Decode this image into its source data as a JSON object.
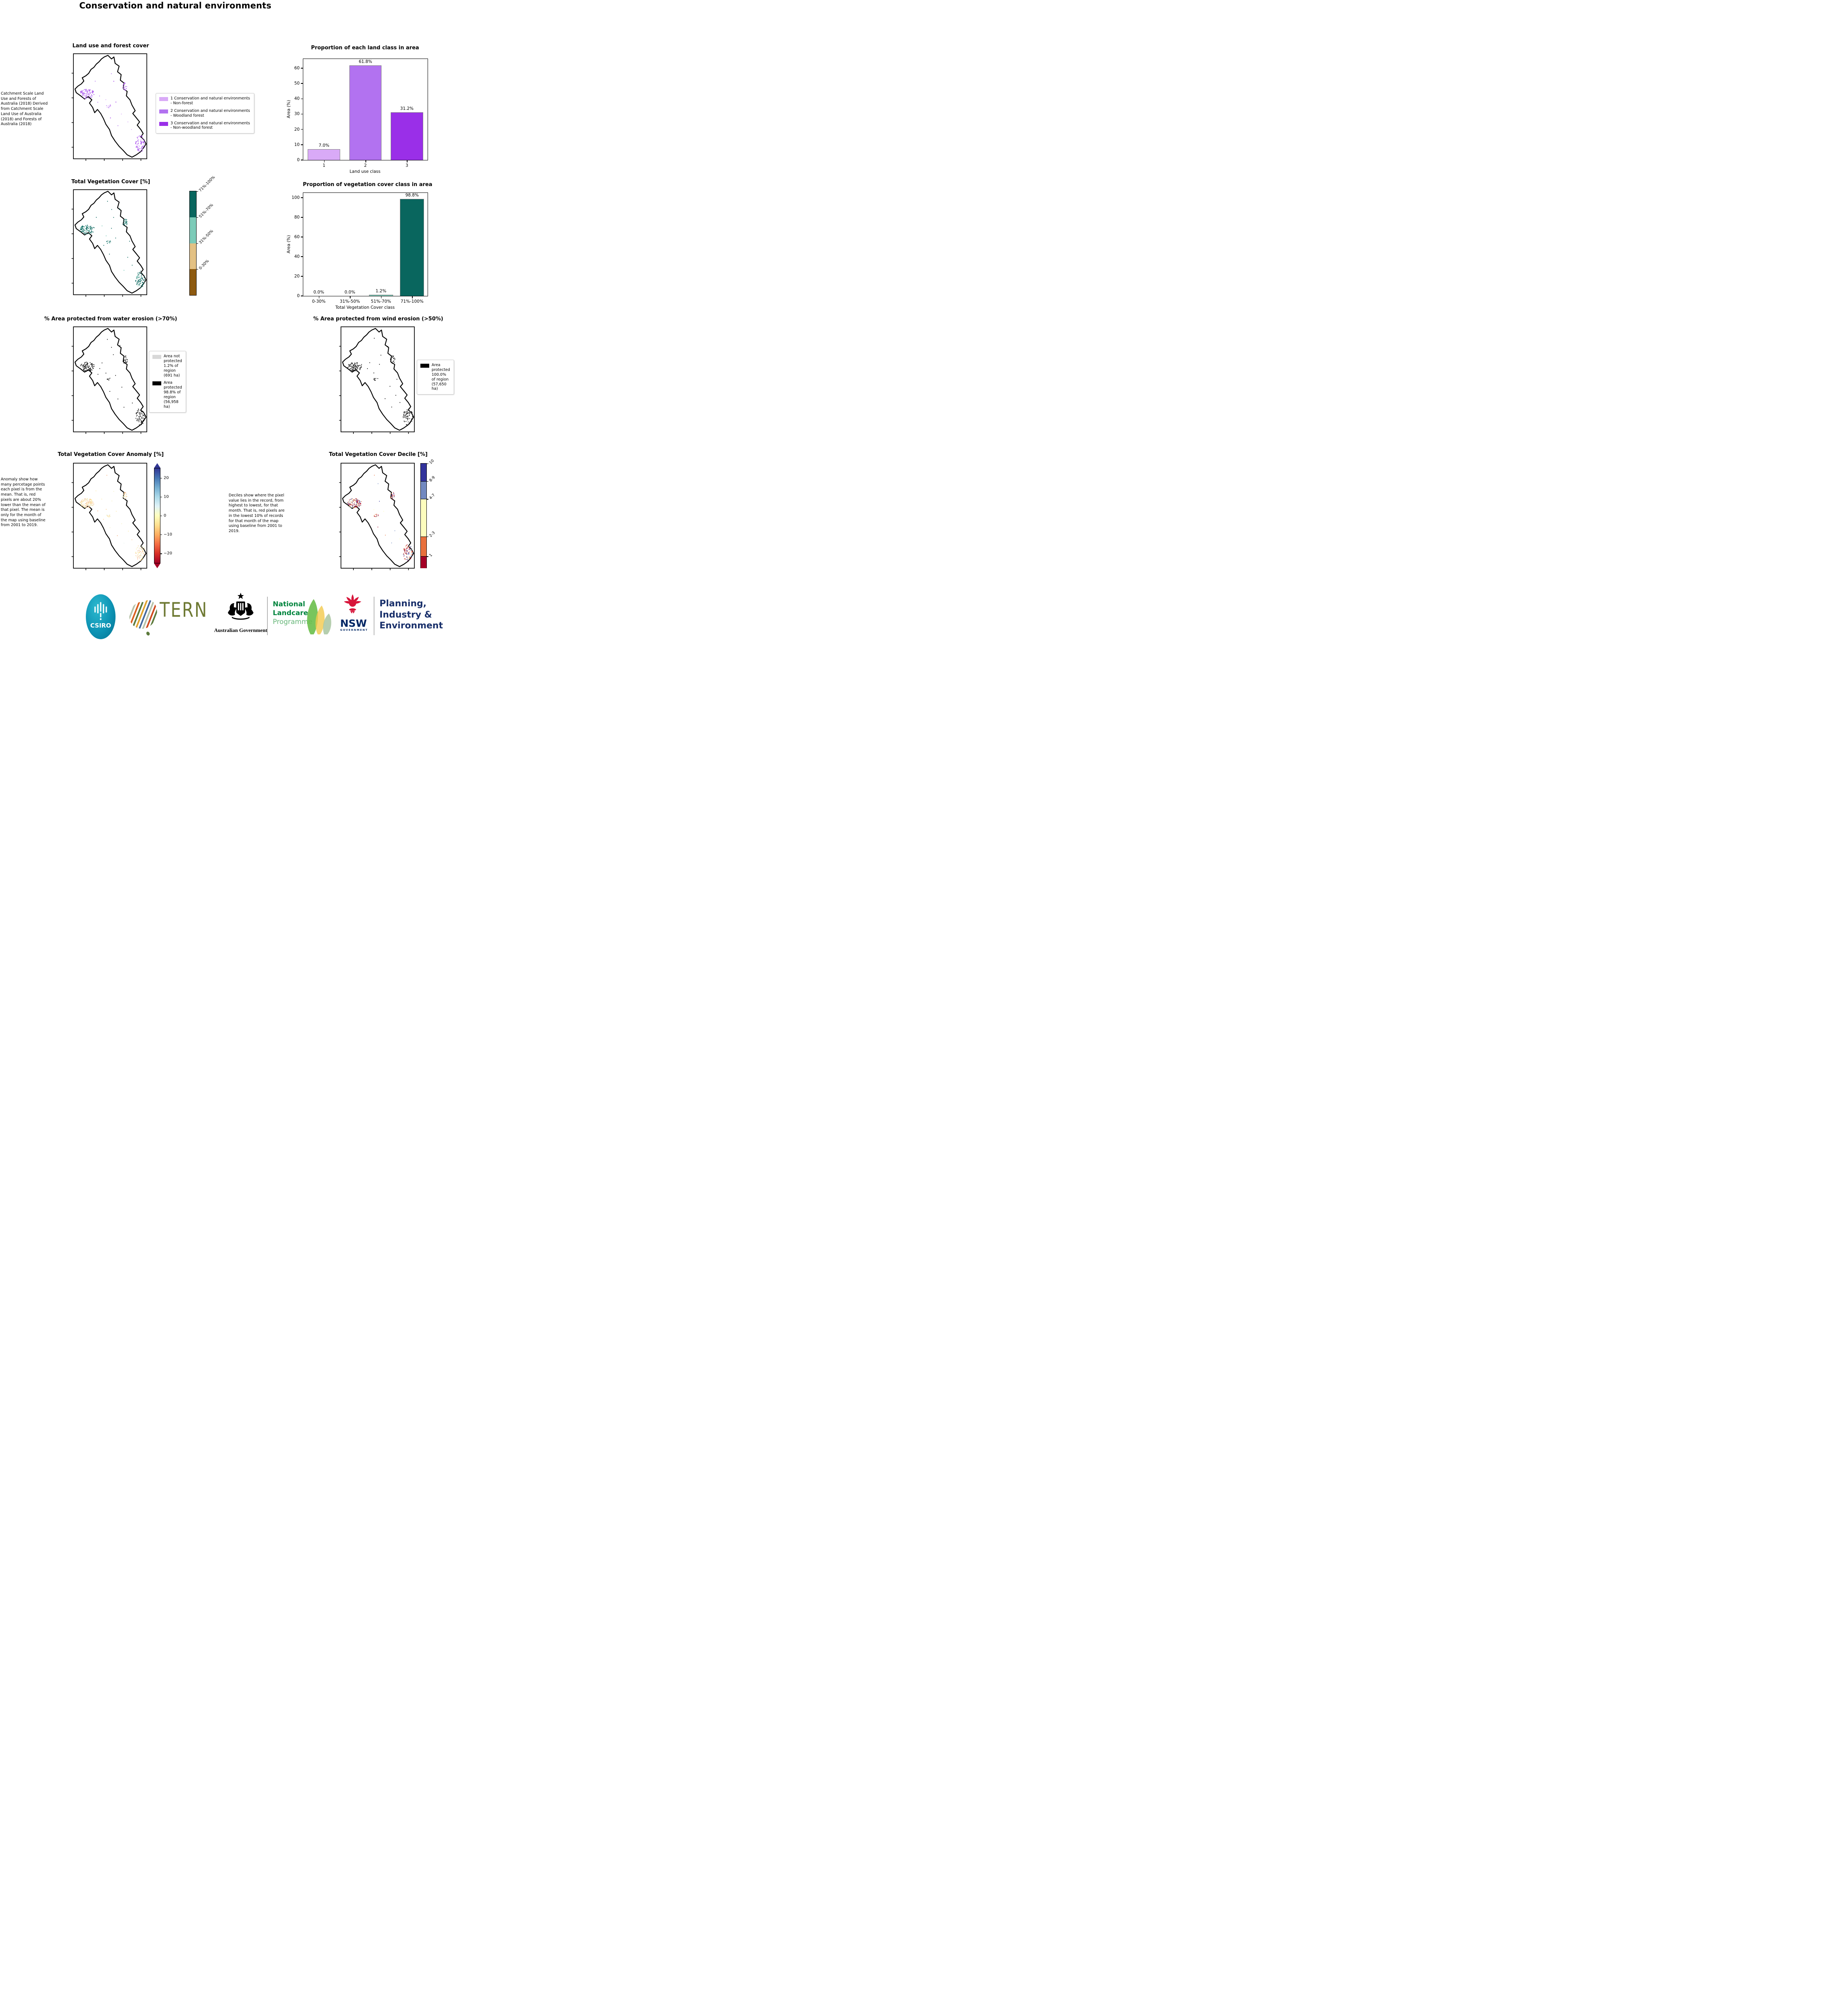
{
  "page_title": "Conservation and natural environments",
  "panels": {
    "land_use": {
      "title": "Land use and forest cover",
      "caption": " Catchment Scale Land Use and Forests of Australia (2018) Derived from Catchment Scale Land Use of Australia (2018) and Forests of Australia (2018)",
      "legend": [
        {
          "label": "1 Conservation and natural environments - Non-forest",
          "color": "#d9aaf7"
        },
        {
          "label": "2 Conservation and natural environments - Woodland forest",
          "color": "#b272f0"
        },
        {
          "label": "3 Conservation and natural environments - Non-woodland forest",
          "color": "#9a2fe8"
        }
      ],
      "map_palette": [
        "#d9aaf7",
        "#b272f0",
        "#9a2fe8"
      ]
    },
    "veg_cover": {
      "title": "Total Vegetation Cover [%]",
      "colorbar": {
        "labels": [
          "71%-100%",
          "51%-70%",
          "31%-50%",
          "0-30%"
        ],
        "colors": [
          "#09665e",
          "#7ccbb8",
          "#e3c184",
          "#8d5a10"
        ]
      },
      "map_palette": [
        "#09665e",
        "#7ccbb8"
      ]
    },
    "water_erosion": {
      "title": "% Area protected from water erosion (>70%)",
      "legend": [
        {
          "label": "Area not protected 1.2% of region (691 ha)",
          "color": "#d8d8d8"
        },
        {
          "label": "Area protected 98.8% of region (56,958 ha)",
          "color": "#000000"
        }
      ],
      "map_palette": [
        "#111111"
      ]
    },
    "wind_erosion": {
      "title": "% Area protected from wind erosion (>50%)",
      "legend": [
        {
          "label": "Area protected 100.0% of region (57,650 ha)",
          "color": "#000000"
        }
      ],
      "map_palette": [
        "#111111"
      ]
    },
    "anomaly": {
      "title": "Total Vegetation Cover Anomaly [%]",
      "caption": "Anomaly show how many percetage points each pixel is from the mean. That is, red pixels are about 20% lower than the mean of that pixel. The mean is only for the month of the map using baseline from 2001 to 2019.",
      "colorbar": {
        "ticks": [
          "20",
          "10",
          "0",
          "−10",
          "−20"
        ],
        "gradient": [
          "#313695",
          "#4575b4",
          "#74add1",
          "#abd9e9",
          "#e0f3f8",
          "#ffffbf",
          "#fee090",
          "#fdae61",
          "#f46d43",
          "#d73027",
          "#a50026"
        ]
      },
      "map_palette": [
        "#f3edba",
        "#fde79a",
        "#f9c27c",
        "#e3f1ee",
        "#f59d62"
      ]
    },
    "decile": {
      "title": "Total Vegetation Cover Decile [%]",
      "caption": "Deciles show where the pixel value lies in the record, from highest to lowest, for that month. That is, red pixels are in the lowest 10% of records for that month of the map using baseline from 2001 to 2019.",
      "colorbar": {
        "labels": [
          "10",
          "8-9",
          "4-7",
          "2-3",
          "1"
        ],
        "colors": [
          "#32339b",
          "#7289c0",
          "#fdfdbe",
          "#e8703c",
          "#a50026"
        ],
        "fractions": [
          0.17,
          0.17,
          0.36,
          0.19,
          0.11
        ]
      },
      "map_palette": [
        "#a50026",
        "#e8703c",
        "#fdfdbe",
        "#7289c0",
        "#32339b"
      ]
    }
  },
  "chart_data": [
    {
      "type": "bar",
      "title": "Proportion of each land class in area",
      "categories": [
        "1",
        "2",
        "3"
      ],
      "values": [
        7.0,
        61.8,
        31.2
      ],
      "bar_labels": [
        "7.0%",
        "61.8%",
        "31.2%"
      ],
      "colors": [
        "#d9aaf7",
        "#b272f0",
        "#9a2fe8"
      ],
      "xlabel": "Land use class",
      "ylabel": "Area (%)",
      "ylim": [
        0,
        66
      ],
      "yticks": [
        0,
        10,
        20,
        30,
        40,
        50,
        60
      ],
      "grid": false,
      "legend_position": "none"
    },
    {
      "type": "bar",
      "title": "Proportion of vegetation cover class in area",
      "categories": [
        "0-30%",
        "31%-50%",
        "51%-70%",
        "71%-100%"
      ],
      "values": [
        0.0,
        0.0,
        1.2,
        98.8
      ],
      "bar_labels": [
        "0.0%",
        "0.0%",
        "1.2%",
        "98.8%"
      ],
      "colors": [
        "#8d5a10",
        "#e3c184",
        "#7ccbb8",
        "#09665e"
      ],
      "xlabel": "Total Vegetation Cover class",
      "ylabel": "Area (%)",
      "ylim": [
        0,
        105
      ],
      "yticks": [
        0,
        20,
        40,
        60,
        80,
        100
      ],
      "grid": false,
      "legend_position": "none"
    }
  ],
  "footer_logos": {
    "csiro": "CSIRO",
    "tern": "TERN",
    "aus_gov": "Australian Government",
    "landcare_lines": [
      "National",
      "Landcare",
      "Programme"
    ],
    "nsw_lines": [
      "NSW",
      "GOVERNMENT"
    ],
    "planning_lines": [
      "Planning,",
      "Industry &",
      "Environment"
    ]
  }
}
